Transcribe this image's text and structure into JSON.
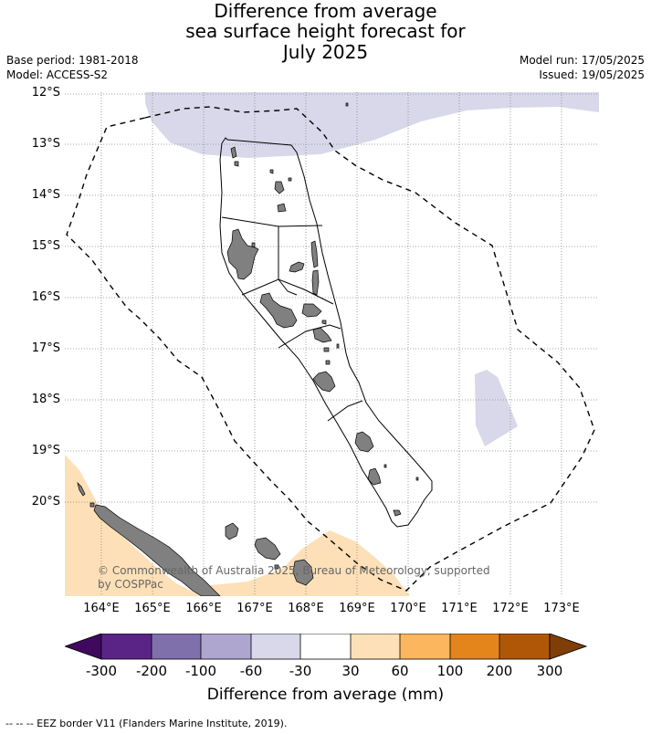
{
  "title": {
    "line1": "Difference from average",
    "line2": "sea surface height forecast for",
    "line3": "July 2025"
  },
  "meta": {
    "base_period": "Base period: 1981-2018",
    "model": "Model: ACCESS-S2",
    "model_run": "Model run: 17/05/2025",
    "issued": "Issued: 19/05/2025"
  },
  "axes": {
    "lat_labels": [
      "12°S",
      "13°S",
      "14°S",
      "15°S",
      "16°S",
      "17°S",
      "18°S",
      "19°S",
      "20°S"
    ],
    "lon_labels": [
      "164°E",
      "165°E",
      "166°E",
      "167°E",
      "168°E",
      "169°E",
      "170°E",
      "171°E",
      "172°E",
      "173°E"
    ],
    "grid": "dotted"
  },
  "map": {
    "region": "Vanuatu",
    "watermark": "© Commonwealth of Australia 2025, Bureau of Meteorology, supported by COSPPac",
    "colors": {
      "land": "#808080",
      "anomaly_neg_light": "#d8d8ea",
      "anomaly_pos_light": "#fde0b7",
      "eez_line": "#000000"
    }
  },
  "colorbar": {
    "label": "Difference from average (mm)",
    "ticks": [
      "-300",
      "-200",
      "-100",
      "-60",
      "-30",
      "30",
      "60",
      "100",
      "200",
      "300"
    ],
    "colors": [
      "#3f0a5e",
      "#5a2487",
      "#7f6fab",
      "#aea6cf",
      "#d8d8ea",
      "#ffffff",
      "#fde0b7",
      "#fcb65d",
      "#e4851b",
      "#b05707",
      "#7e3e06"
    ]
  },
  "footnote": "--  --  -- EEZ border V11 (Flanders Marine Institute, 2019)."
}
